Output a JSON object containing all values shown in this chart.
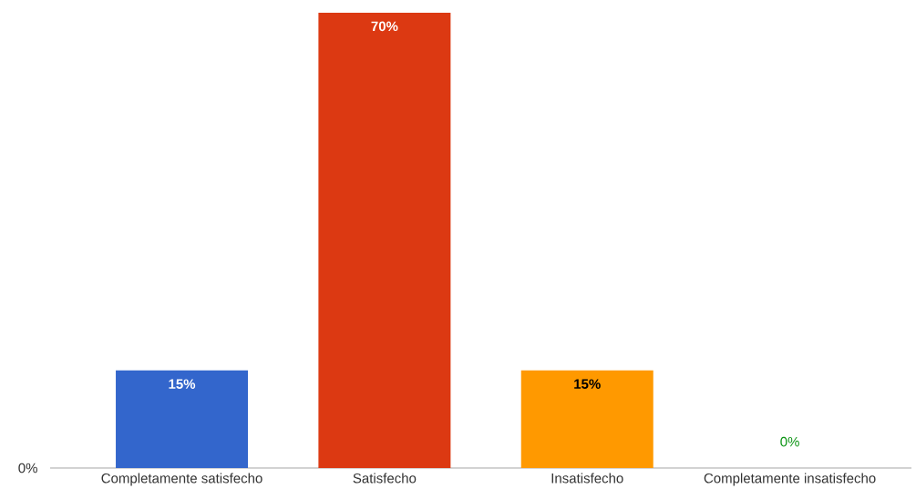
{
  "chart_data": {
    "type": "bar",
    "categories": [
      "Completamente satisfecho",
      "Satisfecho",
      "Insatisfecho",
      "Completamente insatisfecho"
    ],
    "values": [
      15,
      70,
      15,
      0
    ],
    "colors": [
      "#3366cc",
      "#dc3912",
      "#ff9900",
      "#109618"
    ],
    "value_labels": [
      "15%",
      "70%",
      "15%",
      "0%"
    ],
    "annotations": [
      "0%"
    ],
    "grid": false
  }
}
